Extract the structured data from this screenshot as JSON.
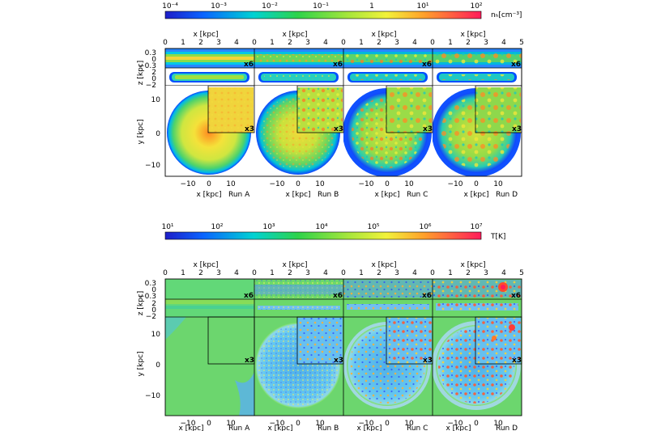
{
  "colorbars": [
    {
      "ticks": [
        "10⁻⁴",
        "10⁻³",
        "10⁻²",
        "10⁻¹",
        "1",
        "10¹",
        "10²"
      ],
      "label": "nₕ[cm⁻³]"
    },
    {
      "ticks": [
        "10¹",
        "10²",
        "10³",
        "10⁴",
        "10⁵",
        "10⁶",
        "10⁷"
      ],
      "label": "T[K]"
    }
  ],
  "runs": [
    "Run A",
    "Run B",
    "Run C",
    "Run D"
  ],
  "top_axis": {
    "title": "x [kpc]",
    "ticks": [
      "0",
      "1",
      "2",
      "3",
      "4",
      "5"
    ]
  },
  "bottom_axis": {
    "title": "x [kpc]",
    "ticks": [
      "−10",
      "0",
      "10"
    ]
  },
  "z_axis": {
    "title": "z [kpc]",
    "ticks_zoom": [
      "0.3",
      "0",
      "−0.3"
    ],
    "ticks": [
      "2",
      "0",
      "−2"
    ]
  },
  "y_axis": {
    "title": "y [kpc]",
    "ticks": [
      "10",
      "0",
      "−10"
    ]
  },
  "zoom_labels": {
    "edge": "x6",
    "face": "x3"
  }
}
